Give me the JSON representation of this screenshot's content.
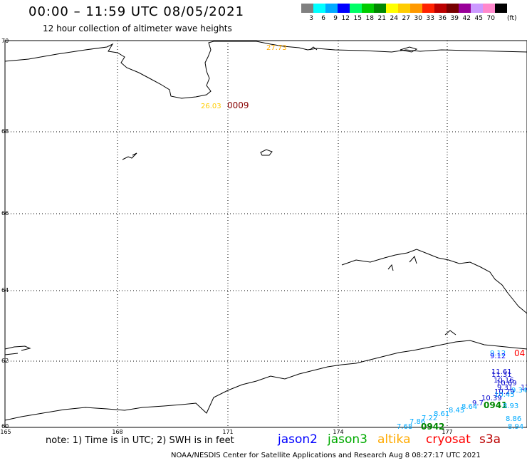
{
  "header": {
    "title": "00:00 – 11:59 UTC 08/05/2021",
    "subtitle": "12 hour collection of altimeter wave heights"
  },
  "legend": {
    "colors": [
      "#808080",
      "#00ffff",
      "#00aaff",
      "#0000ff",
      "#00ff66",
      "#00cc00",
      "#008800",
      "#ffff00",
      "#ffcc00",
      "#ff9900",
      "#ff2200",
      "#bb0000",
      "#770000",
      "#990099",
      "#cc99ff",
      "#ff88cc",
      "#000000"
    ],
    "labels": [
      "3",
      "6",
      "9",
      "12",
      "15",
      "18",
      "21",
      "24",
      "27",
      "30",
      "33",
      "36",
      "39",
      "42",
      "45",
      "70"
    ],
    "unit": "(ft)"
  },
  "axes": {
    "lat_labels": [
      "70",
      "68",
      "66",
      "64",
      "62",
      "60"
    ],
    "lon_labels": [
      "165",
      "168",
      "171",
      "174",
      "177"
    ]
  },
  "observations": [
    {
      "text": "27.73",
      "color": "#ffaa00"
    },
    {
      "text": "26.03",
      "color": "#ffcc00"
    },
    {
      "text": "0009",
      "color": "#880000"
    },
    {
      "text": "9.12",
      "color": "#00aaff"
    },
    {
      "text": "9.12",
      "color": "#0000ff"
    },
    {
      "text": "04",
      "color": "#ff0000"
    },
    {
      "text": "11.61",
      "color": "#0000cc"
    },
    {
      "text": "11.31",
      "color": "#0000cc"
    },
    {
      "text": "10.16",
      "color": "#0000cc"
    },
    {
      "text": "10.69",
      "color": "#0000cc"
    },
    {
      "text": "9.31",
      "color": "#0000cc"
    },
    {
      "text": "10.29",
      "color": "#0000cc"
    },
    {
      "text": "10.45",
      "color": "#00aaff"
    },
    {
      "text": "10.39",
      "color": "#0000cc"
    },
    {
      "text": "12",
      "color": "#0000cc"
    },
    {
      "text": "9.34",
      "color": "#00aaff"
    },
    {
      "text": "9.7",
      "color": "#0000cc"
    },
    {
      "text": "0941",
      "color": "#008800"
    },
    {
      "text": "8.93",
      "color": "#00aaff"
    },
    {
      "text": "8.64",
      "color": "#00aaff"
    },
    {
      "text": "8.45",
      "color": "#00aaff"
    },
    {
      "text": "8.61",
      "color": "#00aaff"
    },
    {
      "text": "7.22",
      "color": "#00aaff"
    },
    {
      "text": "7.86",
      "color": "#00aaff"
    },
    {
      "text": "7.68",
      "color": "#00aaff"
    },
    {
      "text": "0942",
      "color": "#008800"
    },
    {
      "text": "8.86",
      "color": "#00aaff"
    },
    {
      "text": "8.94",
      "color": "#00aaff"
    }
  ],
  "footer": {
    "note": "note:  1) Time is in UTC;  2) SWH is in feet",
    "satellites": [
      {
        "name": "jason2",
        "color": "#0000ff"
      },
      {
        "name": "jason3",
        "color": "#00aa00"
      },
      {
        "name": "altika",
        "color": "#ffaa00"
      },
      {
        "name": "cryosat",
        "color": "#ff0000"
      },
      {
        "name": "s3a",
        "color": "#bb0000"
      }
    ],
    "credit": "NOAA/NESDIS Center for Satellite Applications and Research    Aug  8 08:27:17 UTC 2021"
  }
}
